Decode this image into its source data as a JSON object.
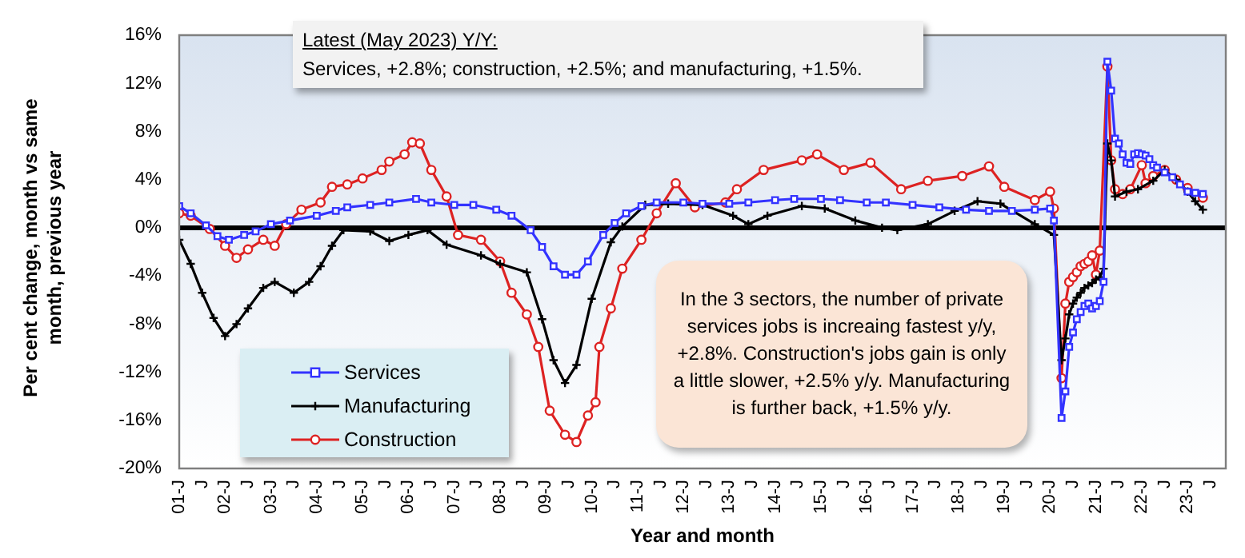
{
  "chart_data": {
    "type": "line",
    "title": "Latest (May 2023) Y/Y:",
    "subtitle": "Services, +2.8%; construction, +2.5%; and manufacturing, +1.5%.",
    "xlabel": "Year and month",
    "ylabel": "Per cent change, month vs same month, previous year",
    "annotations": [
      "In the 3 sectors, the number of private services jobs is increaing fastest y/y, +2.8%. Construction's jobs gain is only a little slower, +2.5% y/y. Manufacturing is further back, +1.5% y/y."
    ],
    "xlim": [
      "2001-01",
      "2023-11"
    ],
    "xticks": [
      {
        "value": "2001-01",
        "label": "01-J"
      },
      {
        "value": "2001-07",
        "label": "J"
      },
      {
        "value": "2002-01",
        "label": "02-J"
      },
      {
        "value": "2002-07",
        "label": "J"
      },
      {
        "value": "2003-01",
        "label": "03-J"
      },
      {
        "value": "2003-07",
        "label": "J"
      },
      {
        "value": "2004-01",
        "label": "04-J"
      },
      {
        "value": "2004-07",
        "label": "J"
      },
      {
        "value": "2005-01",
        "label": "05-J"
      },
      {
        "value": "2005-07",
        "label": "J"
      },
      {
        "value": "2006-01",
        "label": "06-J"
      },
      {
        "value": "2006-07",
        "label": "J"
      },
      {
        "value": "2007-01",
        "label": "07-J"
      },
      {
        "value": "2007-07",
        "label": "J"
      },
      {
        "value": "2008-01",
        "label": "08-J"
      },
      {
        "value": "2008-07",
        "label": "J"
      },
      {
        "value": "2009-01",
        "label": "09-J"
      },
      {
        "value": "2009-07",
        "label": "J"
      },
      {
        "value": "2010-01",
        "label": "10-J"
      },
      {
        "value": "2010-07",
        "label": "J"
      },
      {
        "value": "2011-01",
        "label": "11-J"
      },
      {
        "value": "2011-07",
        "label": "J"
      },
      {
        "value": "2012-01",
        "label": "12-J"
      },
      {
        "value": "2012-07",
        "label": "J"
      },
      {
        "value": "2013-01",
        "label": "13-J"
      },
      {
        "value": "2013-07",
        "label": "J"
      },
      {
        "value": "2014-01",
        "label": "14-J"
      },
      {
        "value": "2014-07",
        "label": "J"
      },
      {
        "value": "2015-01",
        "label": "15-J"
      },
      {
        "value": "2015-07",
        "label": "J"
      },
      {
        "value": "2016-01",
        "label": "16-J"
      },
      {
        "value": "2016-07",
        "label": "J"
      },
      {
        "value": "2017-01",
        "label": "17-J"
      },
      {
        "value": "2017-07",
        "label": "J"
      },
      {
        "value": "2018-01",
        "label": "18-J"
      },
      {
        "value": "2018-07",
        "label": "J"
      },
      {
        "value": "2019-01",
        "label": "19-J"
      },
      {
        "value": "2019-07",
        "label": "J"
      },
      {
        "value": "2020-01",
        "label": "20-J"
      },
      {
        "value": "2020-07",
        "label": "J"
      },
      {
        "value": "2021-01",
        "label": "21-J"
      },
      {
        "value": "2021-07",
        "label": "J"
      },
      {
        "value": "2022-01",
        "label": "22-J"
      },
      {
        "value": "2022-07",
        "label": "J"
      },
      {
        "value": "2023-01",
        "label": "23-J"
      },
      {
        "value": "2023-07",
        "label": "J"
      }
    ],
    "ylim": [
      -20,
      16
    ],
    "yticks": [
      {
        "value": -20,
        "label": "-20%"
      },
      {
        "value": -16,
        "label": "-16%"
      },
      {
        "value": -12,
        "label": "-12%"
      },
      {
        "value": -8,
        "label": "-8%"
      },
      {
        "value": -4,
        "label": "-4%"
      },
      {
        "value": 0,
        "label": "0%"
      },
      {
        "value": 4,
        "label": "4%"
      },
      {
        "value": 8,
        "label": "8%"
      },
      {
        "value": 12,
        "label": "12%"
      },
      {
        "value": 16,
        "label": "16%"
      }
    ],
    "grid": false,
    "legend": "bottom left",
    "ref_lines": [
      {
        "axis": "y",
        "value": 0,
        "color": "#000000"
      }
    ],
    "series": [
      {
        "name": "Services",
        "color": "#3333ff",
        "marker": "square",
        "x": [
          "2001-01",
          "2001-04",
          "2001-08",
          "2001-11",
          "2002-02",
          "2002-06",
          "2002-09",
          "2003-01",
          "2003-06",
          "2004-01",
          "2004-06",
          "2004-09",
          "2005-03",
          "2005-08",
          "2006-03",
          "2006-07",
          "2007-01",
          "2007-06",
          "2007-12",
          "2008-04",
          "2008-09",
          "2008-12",
          "2009-03",
          "2009-06",
          "2009-09",
          "2009-12",
          "2010-04",
          "2010-07",
          "2010-10",
          "2011-02",
          "2011-06",
          "2012-01",
          "2012-06",
          "2013-01",
          "2013-06",
          "2014-01",
          "2014-06",
          "2015-01",
          "2015-06",
          "2016-01",
          "2016-06",
          "2017-01",
          "2017-08",
          "2018-03",
          "2018-09",
          "2019-03",
          "2019-09",
          "2020-01",
          "2020-02",
          "2020-04",
          "2020-05",
          "2020-06",
          "2020-07",
          "2020-08",
          "2020-09",
          "2020-10",
          "2020-11",
          "2020-12",
          "2021-01",
          "2021-02",
          "2021-03",
          "2021-04",
          "2021-05",
          "2021-06",
          "2021-07",
          "2021-08",
          "2021-09",
          "2021-10",
          "2021-11",
          "2021-12",
          "2022-01",
          "2022-02",
          "2022-03",
          "2022-04",
          "2022-05",
          "2022-07",
          "2022-09",
          "2022-11",
          "2023-01",
          "2023-03",
          "2023-05"
        ],
        "values": [
          1.8,
          1.2,
          0.2,
          -0.7,
          -1.0,
          -0.6,
          -0.3,
          0.3,
          0.6,
          1.0,
          1.4,
          1.7,
          1.9,
          2.1,
          2.4,
          2.1,
          1.9,
          1.9,
          1.5,
          1.0,
          -0.2,
          -1.6,
          -3.2,
          -3.9,
          -3.9,
          -2.8,
          -0.6,
          0.4,
          1.2,
          1.8,
          2.1,
          2.1,
          2.0,
          2.0,
          2.1,
          2.3,
          2.4,
          2.4,
          2.3,
          2.1,
          2.1,
          1.9,
          1.7,
          1.5,
          1.4,
          1.4,
          1.5,
          1.6,
          0.6,
          -15.8,
          -13.6,
          -9.9,
          -8.7,
          -7.6,
          -7.0,
          -6.5,
          -6.3,
          -6.7,
          -6.5,
          -6.1,
          -4.5,
          13.8,
          11.4,
          7.4,
          7.0,
          6.1,
          5.4,
          5.3,
          6.1,
          6.2,
          6.1,
          6.0,
          5.7,
          5.2,
          5.0,
          4.6,
          4.2,
          3.6,
          3.0,
          2.9,
          2.8
        ]
      },
      {
        "name": "Manufacturing",
        "color": "#000000",
        "marker": "cross",
        "x": [
          "2001-01",
          "2001-04",
          "2001-07",
          "2001-10",
          "2002-01",
          "2002-04",
          "2002-07",
          "2002-11",
          "2003-02",
          "2003-07",
          "2003-11",
          "2004-02",
          "2004-05",
          "2004-08",
          "2005-03",
          "2005-08",
          "2006-01",
          "2006-06",
          "2006-11",
          "2007-08",
          "2008-01",
          "2008-08",
          "2008-12",
          "2009-03",
          "2009-06",
          "2009-09",
          "2010-01",
          "2010-06",
          "2010-09",
          "2011-03",
          "2011-09",
          "2012-06",
          "2013-02",
          "2013-06",
          "2013-11",
          "2014-08",
          "2015-02",
          "2015-10",
          "2016-05",
          "2016-09",
          "2017-05",
          "2017-12",
          "2018-06",
          "2018-12",
          "2019-09",
          "2020-02",
          "2020-04",
          "2020-05",
          "2020-06",
          "2020-07",
          "2020-08",
          "2020-09",
          "2020-10",
          "2020-11",
          "2020-12",
          "2021-01",
          "2021-02",
          "2021-03",
          "2021-04",
          "2021-05",
          "2021-06",
          "2021-09",
          "2021-12",
          "2022-04",
          "2022-07",
          "2022-10",
          "2023-01",
          "2023-03",
          "2023-05"
        ],
        "values": [
          -1.0,
          -3.0,
          -5.4,
          -7.5,
          -9.0,
          -8.0,
          -6.7,
          -5.0,
          -4.5,
          -5.4,
          -4.5,
          -3.2,
          -1.5,
          -0.2,
          -0.3,
          -1.1,
          -0.6,
          -0.2,
          -1.4,
          -2.3,
          -3.0,
          -3.7,
          -7.6,
          -11.0,
          -12.9,
          -11.4,
          -5.9,
          -1.2,
          0.1,
          1.9,
          2.0,
          1.9,
          1.0,
          0.3,
          1.0,
          1.8,
          1.6,
          0.6,
          0.0,
          -0.2,
          0.3,
          1.4,
          2.2,
          2.0,
          0.3,
          -0.6,
          -11.0,
          -9.2,
          -7.2,
          -6.3,
          -5.8,
          -5.4,
          -5.0,
          -4.8,
          -4.6,
          -4.3,
          -4.1,
          -3.4,
          7.0,
          5.6,
          2.6,
          3.0,
          3.2,
          3.9,
          4.8,
          4.0,
          3.0,
          2.2,
          1.5
        ]
      },
      {
        "name": "Construction",
        "color": "#dd2222",
        "marker": "circle",
        "x": [
          "2001-01",
          "2001-04",
          "2001-09",
          "2002-01",
          "2002-04",
          "2002-07",
          "2002-11",
          "2003-02",
          "2003-05",
          "2003-09",
          "2004-02",
          "2004-05",
          "2004-09",
          "2005-01",
          "2005-06",
          "2005-08",
          "2005-12",
          "2006-02",
          "2006-04",
          "2006-07",
          "2006-11",
          "2007-02",
          "2007-08",
          "2008-01",
          "2008-04",
          "2008-08",
          "2008-11",
          "2009-02",
          "2009-06",
          "2009-09",
          "2009-12",
          "2010-02",
          "2010-03",
          "2010-06",
          "2010-09",
          "2011-02",
          "2011-06",
          "2011-11",
          "2012-04",
          "2012-12",
          "2013-03",
          "2013-10",
          "2014-08",
          "2014-12",
          "2015-07",
          "2016-02",
          "2016-10",
          "2017-05",
          "2018-02",
          "2018-09",
          "2019-01",
          "2019-09",
          "2020-01",
          "2020-02",
          "2020-04",
          "2020-05",
          "2020-06",
          "2020-07",
          "2020-08",
          "2020-09",
          "2020-10",
          "2020-11",
          "2020-12",
          "2021-01",
          "2021-02",
          "2021-04",
          "2021-05",
          "2021-06",
          "2021-08",
          "2021-10",
          "2022-01",
          "2022-02",
          "2022-04",
          "2022-07",
          "2022-10",
          "2023-01",
          "2023-05"
        ],
        "values": [
          1.2,
          1.0,
          -0.1,
          -1.5,
          -2.5,
          -1.8,
          -1.0,
          -1.5,
          0.3,
          1.5,
          2.1,
          3.4,
          3.6,
          4.1,
          4.8,
          5.5,
          6.1,
          7.1,
          7.0,
          4.8,
          2.6,
          -0.6,
          -1.0,
          -2.8,
          -5.4,
          -7.2,
          -9.9,
          -15.2,
          -17.2,
          -17.8,
          -15.6,
          -14.5,
          -9.9,
          -6.7,
          -3.4,
          -1.0,
          1.2,
          3.7,
          1.7,
          2.1,
          3.2,
          4.8,
          5.6,
          6.1,
          4.8,
          5.4,
          3.2,
          3.9,
          4.3,
          5.1,
          3.4,
          2.3,
          3.0,
          1.6,
          -12.5,
          -6.3,
          -4.5,
          -4.1,
          -3.7,
          -3.2,
          -3.0,
          -2.8,
          -2.3,
          -3.9,
          -1.9,
          13.4,
          5.6,
          3.2,
          2.8,
          3.2,
          5.2,
          3.7,
          4.3,
          4.8,
          4.0,
          3.3,
          2.5
        ]
      }
    ]
  }
}
